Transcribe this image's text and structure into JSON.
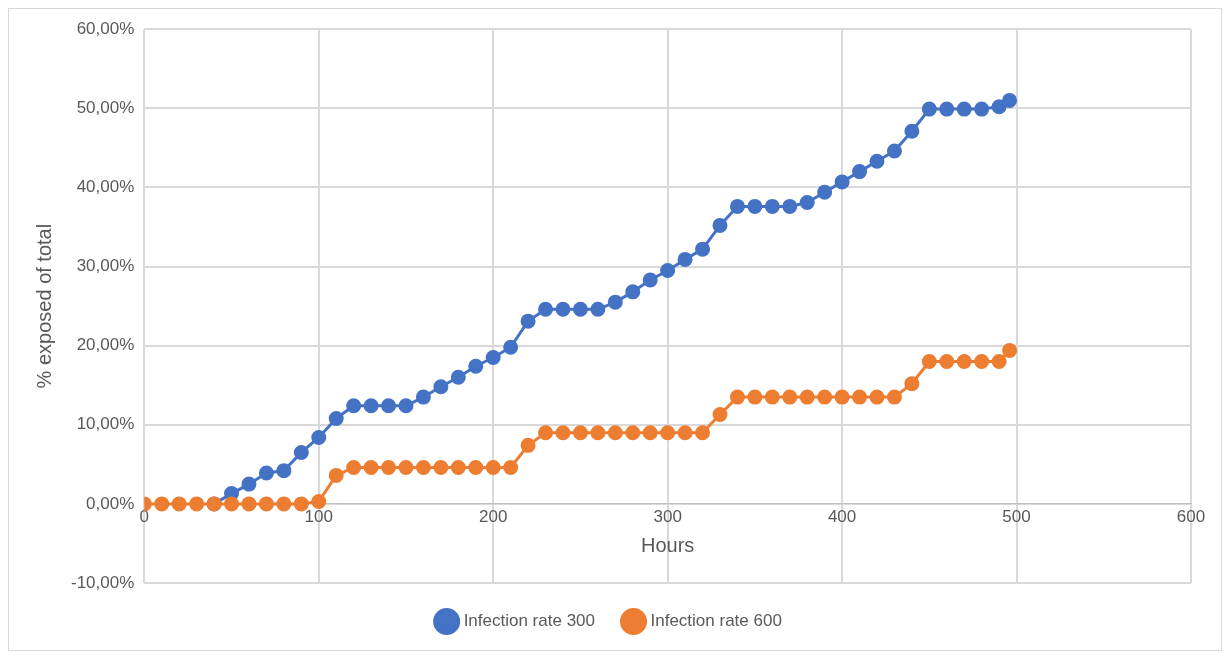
{
  "chart_data": {
    "type": "line",
    "xlabel": "Hours",
    "ylabel": "% exposed of total",
    "x": [
      0,
      10,
      20,
      30,
      40,
      50,
      60,
      70,
      80,
      90,
      100,
      110,
      120,
      130,
      140,
      150,
      160,
      170,
      180,
      190,
      200,
      210,
      220,
      230,
      240,
      250,
      260,
      270,
      280,
      290,
      300,
      310,
      320,
      330,
      340,
      350,
      360,
      370,
      380,
      390,
      400,
      410,
      420,
      430,
      440,
      450,
      460,
      470,
      480,
      490,
      496
    ],
    "series": [
      {
        "name": "Infection rate 300",
        "color": "#4472c4",
        "values": [
          null,
          null,
          null,
          null,
          0,
          1.3,
          2.5,
          3.9,
          4.2,
          6.5,
          8.4,
          10.8,
          12.4,
          12.4,
          12.4,
          12.4,
          13.5,
          14.8,
          16.0,
          17.4,
          18.5,
          19.8,
          23.1,
          24.6,
          24.6,
          24.6,
          24.6,
          25.5,
          26.8,
          28.3,
          29.5,
          30.9,
          32.2,
          35.2,
          37.6,
          37.6,
          37.6,
          37.6,
          38.1,
          39.4,
          40.7,
          42.0,
          43.3,
          44.6,
          47.1,
          49.9,
          49.9,
          49.9,
          49.9,
          50.2,
          51.0
        ]
      },
      {
        "name": "Infection rate 600",
        "color": "#ed7d31",
        "values": [
          0,
          0,
          0,
          0,
          0,
          0,
          0,
          0,
          0,
          0,
          0.3,
          3.6,
          4.6,
          4.6,
          4.6,
          4.6,
          4.6,
          4.6,
          4.6,
          4.6,
          4.6,
          4.6,
          7.4,
          9.0,
          9.0,
          9.0,
          9.0,
          9.0,
          9.0,
          9.0,
          9.0,
          9.0,
          9.0,
          11.3,
          13.5,
          13.5,
          13.5,
          13.5,
          13.5,
          13.5,
          13.5,
          13.5,
          13.5,
          13.5,
          15.2,
          18.0,
          18.0,
          18.0,
          18.0,
          18.0,
          19.4
        ]
      }
    ],
    "xlim": [
      0,
      600
    ],
    "xticks": [
      0,
      100,
      200,
      300,
      400,
      500,
      600
    ],
    "ylim": [
      -10,
      60
    ],
    "yticks": [
      {
        "value": -10,
        "label": "-10,00%"
      },
      {
        "value": 0,
        "label": "0,00%"
      },
      {
        "value": 10,
        "label": "10,00%"
      },
      {
        "value": 20,
        "label": "20,00%"
      },
      {
        "value": 30,
        "label": "30,00%"
      },
      {
        "value": 40,
        "label": "40,00%"
      },
      {
        "value": 50,
        "label": "50,00%"
      },
      {
        "value": 60,
        "label": "60,00%"
      }
    ],
    "grid": true,
    "legend": "bottom",
    "marker": "circle",
    "line_style": "solid"
  }
}
